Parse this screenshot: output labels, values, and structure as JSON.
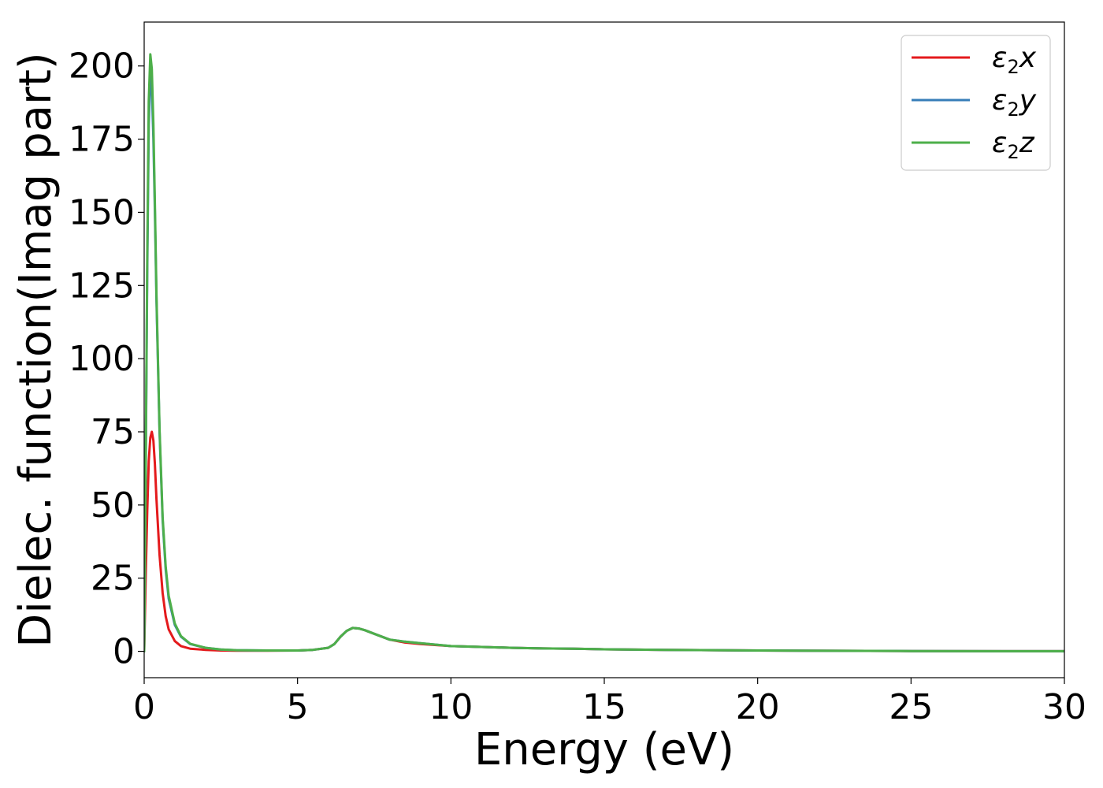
{
  "chart_data": {
    "type": "line",
    "xlabel": "Energy (eV)",
    "ylabel": "Dielec. function(Imag part)",
    "xlim": [
      0,
      30
    ],
    "ylim": [
      -9,
      215
    ],
    "x_ticks": [
      0,
      5,
      10,
      15,
      20,
      25,
      30
    ],
    "y_ticks": [
      0,
      25,
      50,
      75,
      100,
      125,
      150,
      175,
      200
    ],
    "grid": false,
    "legend_position": "top-right",
    "series": [
      {
        "name": "ε₂x",
        "legend": {
          "base": "ε",
          "sub": "2",
          "tail": "x"
        },
        "color": "#e41a1c",
        "x": [
          0,
          0.05,
          0.1,
          0.15,
          0.2,
          0.25,
          0.3,
          0.35,
          0.4,
          0.5,
          0.6,
          0.7,
          0.8,
          1.0,
          1.2,
          1.5,
          2.0,
          2.5,
          3.0,
          4.0,
          5.0,
          5.5,
          6.0,
          6.2,
          6.4,
          6.6,
          6.8,
          7.0,
          7.2,
          7.5,
          8.0,
          8.5,
          9.0,
          10.0,
          11.0,
          12.0,
          13.0,
          14.0,
          15.0,
          17.0,
          20.0,
          25.0,
          30.0
        ],
        "y": [
          0,
          25,
          48,
          65,
          73,
          75,
          72,
          64,
          52,
          33,
          20,
          12,
          7.5,
          3.5,
          1.8,
          0.9,
          0.5,
          0.3,
          0.2,
          0.2,
          0.3,
          0.5,
          1.2,
          2.5,
          5,
          7,
          8,
          7.8,
          7.2,
          6,
          4,
          3,
          2.5,
          1.8,
          1.5,
          1.2,
          1.0,
          0.9,
          0.7,
          0.5,
          0.3,
          0.1,
          0.05
        ]
      },
      {
        "name": "ε₂y",
        "legend": {
          "base": "ε",
          "sub": "2",
          "tail": "y"
        },
        "color": "#377eb8",
        "x": [
          0,
          0.05,
          0.1,
          0.15,
          0.2,
          0.25,
          0.3,
          0.35,
          0.4,
          0.5,
          0.6,
          0.7,
          0.8,
          1.0,
          1.2,
          1.5,
          2.0,
          2.5,
          3.0,
          4.0,
          5.0,
          5.5,
          6.0,
          6.2,
          6.4,
          6.6,
          6.8,
          7.0,
          7.2,
          7.5,
          8.0,
          8.5,
          9.0,
          10.0,
          11.0,
          12.0,
          13.0,
          14.0,
          15.0,
          17.0,
          20.0,
          25.0,
          30.0
        ],
        "y": [
          0,
          60,
          130,
          180,
          197,
          193,
          175,
          150,
          120,
          75,
          45,
          28,
          18,
          9,
          5,
          2.5,
          1.2,
          0.6,
          0.4,
          0.3,
          0.3,
          0.5,
          1.2,
          2.5,
          5,
          7,
          8,
          7.8,
          7.2,
          6,
          4,
          3.3,
          2.8,
          1.8,
          1.5,
          1.2,
          1.0,
          0.9,
          0.7,
          0.5,
          0.3,
          0.1,
          0.05
        ]
      },
      {
        "name": "ε₂z",
        "legend": {
          "base": "ε",
          "sub": "2",
          "tail": "z"
        },
        "color": "#4daf4a",
        "x": [
          0,
          0.05,
          0.1,
          0.15,
          0.2,
          0.25,
          0.3,
          0.35,
          0.4,
          0.5,
          0.6,
          0.7,
          0.8,
          1.0,
          1.2,
          1.5,
          2.0,
          2.5,
          3.0,
          4.0,
          5.0,
          5.5,
          6.0,
          6.2,
          6.4,
          6.6,
          6.8,
          7.0,
          7.2,
          7.5,
          8.0,
          8.5,
          9.0,
          10.0,
          11.0,
          12.0,
          13.0,
          14.0,
          15.0,
          17.0,
          20.0,
          25.0,
          30.0
        ],
        "y": [
          0,
          62,
          135,
          188,
          204,
          199,
          180,
          153,
          122,
          76,
          46,
          29,
          19,
          9.5,
          5.2,
          2.6,
          1.2,
          0.6,
          0.4,
          0.3,
          0.3,
          0.5,
          1.2,
          2.5,
          5,
          7,
          8,
          7.8,
          7.2,
          6,
          4,
          3.3,
          2.8,
          1.8,
          1.5,
          1.2,
          1.0,
          0.9,
          0.7,
          0.5,
          0.3,
          0.1,
          0.05
        ]
      }
    ]
  }
}
